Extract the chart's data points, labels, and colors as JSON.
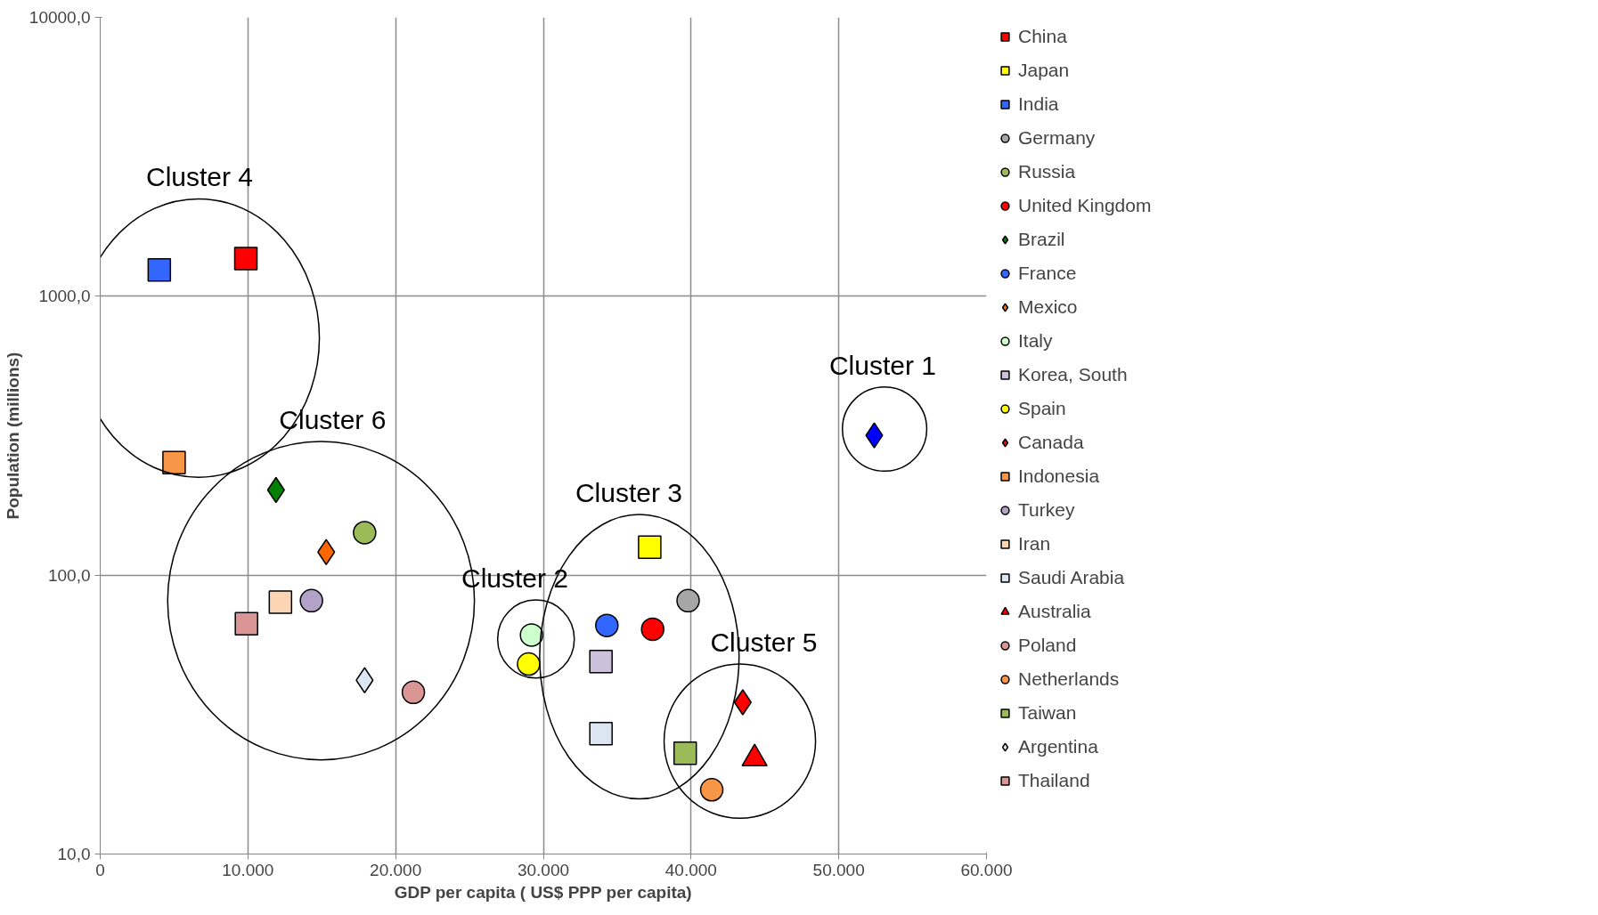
{
  "chart_data": {
    "type": "scatter",
    "xlabel": "GDP per capita ( US$ PPP per capita)",
    "ylabel": "Population (millions)",
    "log": "y",
    "grid": true,
    "legend": "right",
    "xlim": [
      0,
      60000
    ],
    "xticks": [
      {
        "value": 0,
        "label": "0"
      },
      {
        "value": 10000,
        "label": "10.000"
      },
      {
        "value": 20000,
        "label": "20.000"
      },
      {
        "value": 30000,
        "label": "30.000"
      },
      {
        "value": 40000,
        "label": "40.000"
      },
      {
        "value": 50000,
        "label": "50.000"
      },
      {
        "value": 60000,
        "label": "60.000"
      }
    ],
    "ylim": [
      10,
      10000
    ],
    "yticks": [
      {
        "value": 10,
        "label": "10,0"
      },
      {
        "value": 100,
        "label": "100,0"
      },
      {
        "value": 1000,
        "label": "1000,0"
      },
      {
        "value": 10000,
        "label": "10000,0"
      }
    ],
    "series": [
      {
        "color": "#0000ff",
        "marker": "diamond",
        "x": [
          52400
        ],
        "values": [
          317
        ]
      },
      {
        "name": "China",
        "color": "#ff0000",
        "marker": "square",
        "x": [
          9860
        ],
        "values": [
          1365
        ]
      },
      {
        "name": "Japan",
        "color": "#ffff00",
        "marker": "square",
        "x": [
          37200
        ],
        "values": [
          126
        ]
      },
      {
        "name": "India",
        "color": "#3366ff",
        "marker": "square",
        "x": [
          4000
        ],
        "values": [
          1242
        ]
      },
      {
        "name": "Germany",
        "color": "#a6a6a6",
        "marker": "circle",
        "x": [
          39800
        ],
        "values": [
          81
        ]
      },
      {
        "name": "Russia",
        "color": "#9bbb59",
        "marker": "circle",
        "x": [
          17900
        ],
        "values": [
          142
        ]
      },
      {
        "name": "United Kingdom",
        "color": "#ff0000",
        "marker": "circle",
        "x": [
          37400
        ],
        "values": [
          64
        ]
      },
      {
        "name": "Brazil",
        "color": "#008000",
        "marker": "diamond",
        "x": [
          11900
        ],
        "values": [
          202
        ]
      },
      {
        "name": "France",
        "color": "#3366ff",
        "marker": "circle",
        "x": [
          34300
        ],
        "values": [
          66
        ]
      },
      {
        "name": "Mexico",
        "color": "#ff6600",
        "marker": "diamond",
        "x": [
          15300
        ],
        "values": [
          121
        ]
      },
      {
        "name": "Italy",
        "color": "#ccffcc",
        "marker": "circle",
        "x": [
          29200
        ],
        "values": [
          61
        ]
      },
      {
        "name": "Korea, South",
        "color": "#ccc0da",
        "marker": "square",
        "x": [
          33900
        ],
        "values": [
          49
        ]
      },
      {
        "name": "Spain",
        "color": "#ffff00",
        "marker": "circle",
        "x": [
          29000
        ],
        "values": [
          48
        ]
      },
      {
        "name": "Canada",
        "color": "#ff0000",
        "marker": "diamond",
        "x": [
          43500
        ],
        "values": [
          35
        ]
      },
      {
        "name": "Indonesia",
        "color": "#f79646",
        "marker": "square",
        "x": [
          5000
        ],
        "values": [
          253
        ]
      },
      {
        "name": "Turkey",
        "color": "#b3a2c7",
        "marker": "circle",
        "x": [
          14300
        ],
        "values": [
          81
        ]
      },
      {
        "name": "Iran",
        "color": "#fcd5b5",
        "marker": "square",
        "x": [
          12200
        ],
        "values": [
          80
        ]
      },
      {
        "name": "Saudi Arabia",
        "color": "#dce6f2",
        "marker": "square",
        "x": [
          33900
        ],
        "values": [
          27
        ]
      },
      {
        "name": "Australia",
        "color": "#ff0000",
        "marker": "triangle",
        "x": [
          44300
        ],
        "values": [
          22
        ]
      },
      {
        "name": "Poland",
        "color": "#d99694",
        "marker": "circle",
        "x": [
          21200
        ],
        "values": [
          38
        ]
      },
      {
        "name": "Netherlands",
        "color": "#f79646",
        "marker": "circle",
        "x": [
          41400
        ],
        "values": [
          17
        ]
      },
      {
        "name": "Taiwan",
        "color": "#9bbb59",
        "marker": "square",
        "x": [
          39600
        ],
        "values": [
          23
        ]
      },
      {
        "name": "Argentina",
        "color": "#dce6f2",
        "marker": "diamond",
        "x": [
          17900
        ],
        "values": [
          42
        ]
      },
      {
        "name": "Thailand",
        "color": "#d99694",
        "marker": "square",
        "x": [
          9900
        ],
        "values": [
          67
        ]
      }
    ],
    "annotations": [
      "Cluster 4",
      "Cluster 6",
      "Cluster 2",
      "Cluster 3",
      "Cluster 5",
      "Cluster 1"
    ]
  }
}
